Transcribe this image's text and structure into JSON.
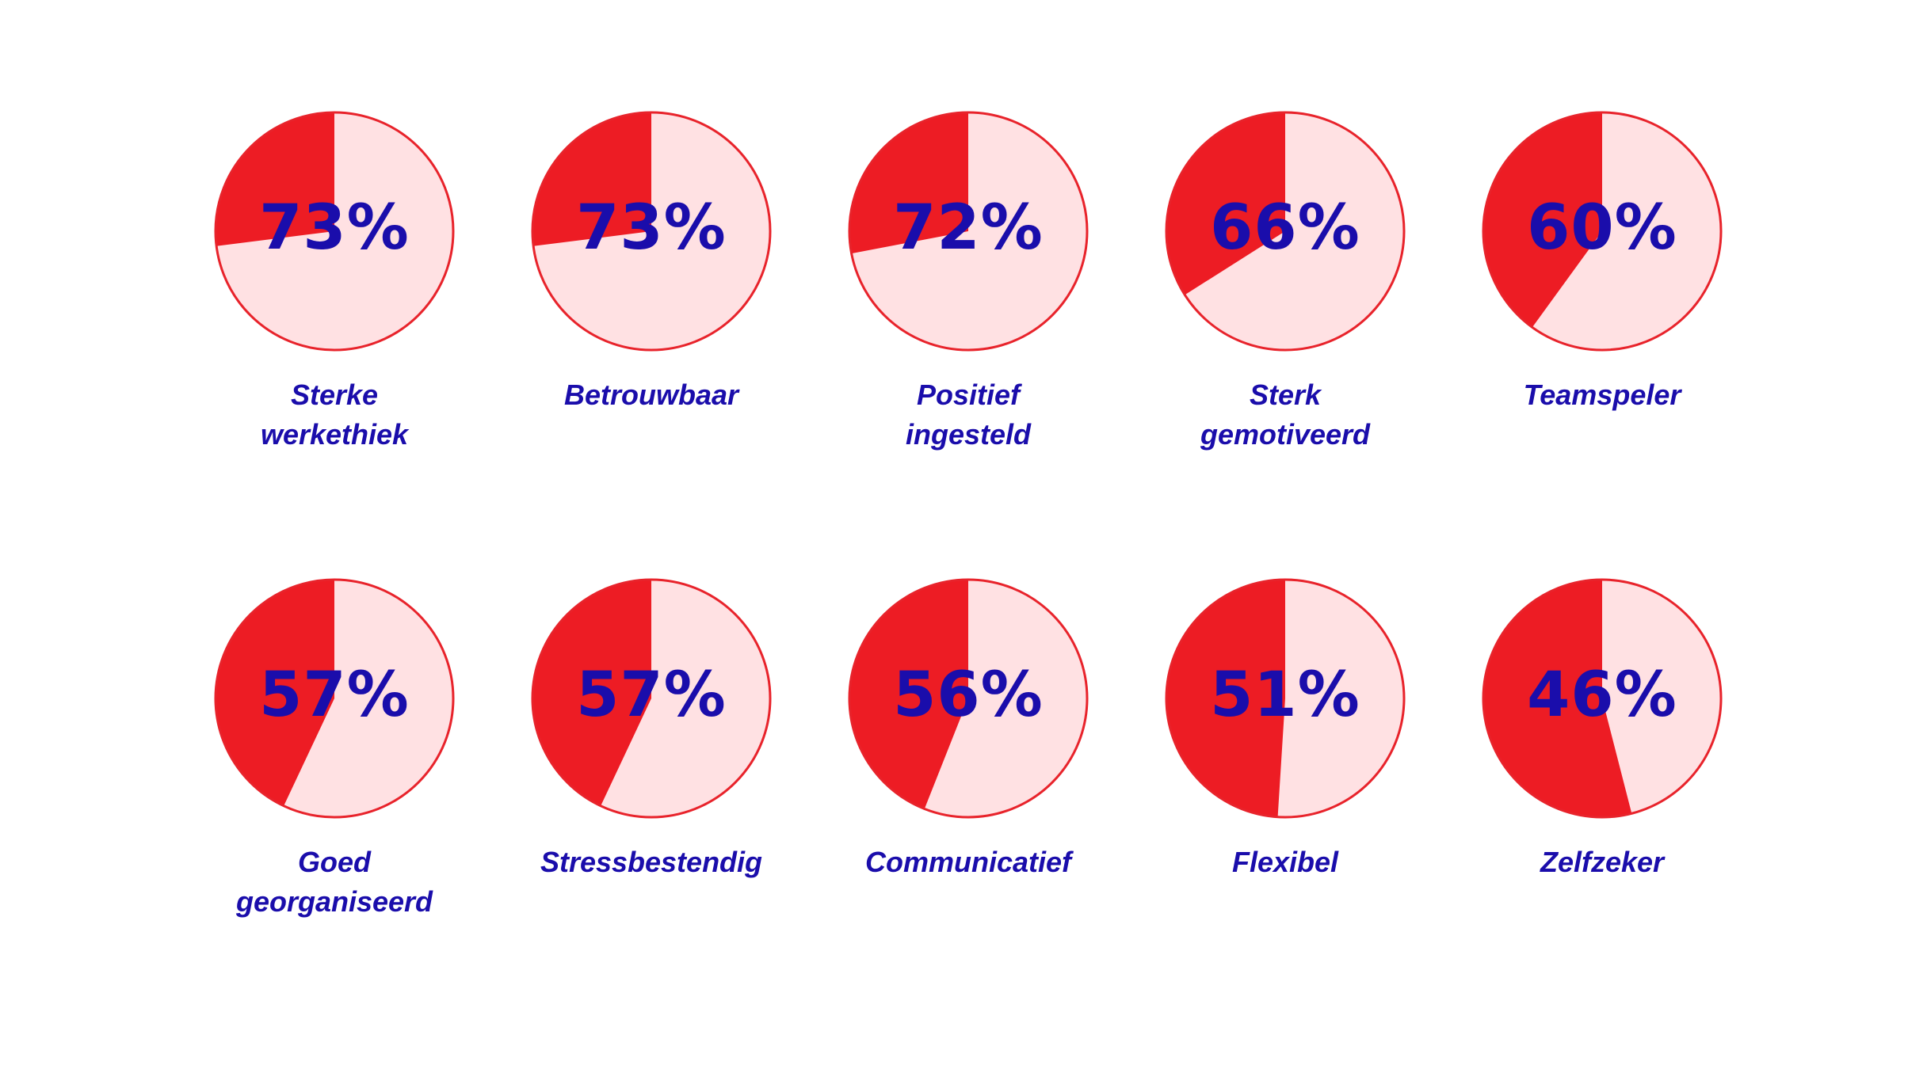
{
  "chart_data": {
    "type": "pie",
    "colors": {
      "highlight": "#ed1c24",
      "remainder": "#ffe1e3",
      "outline": "#e8232b",
      "text": "#1a0dab"
    },
    "items": [
      {
        "label": "Sterke\nwerkethiek",
        "value": 73,
        "display": "73%"
      },
      {
        "label": "Betrouwbaar",
        "value": 73,
        "display": "73%"
      },
      {
        "label": "Positief\ningesteld",
        "value": 72,
        "display": "72%"
      },
      {
        "label": "Sterk\ngemotiveerd",
        "value": 66,
        "display": "66%"
      },
      {
        "label": "Teamspeler",
        "value": 60,
        "display": "60%"
      },
      {
        "label": "Goed\ngeorganiseerd",
        "value": 57,
        "display": "57%"
      },
      {
        "label": "Stressbestendig",
        "value": 57,
        "display": "57%"
      },
      {
        "label": "Communicatief",
        "value": 56,
        "display": "56%"
      },
      {
        "label": "Flexibel",
        "value": 51,
        "display": "51%"
      },
      {
        "label": "Zelfzeker",
        "value": 46,
        "display": "46%"
      }
    ]
  }
}
